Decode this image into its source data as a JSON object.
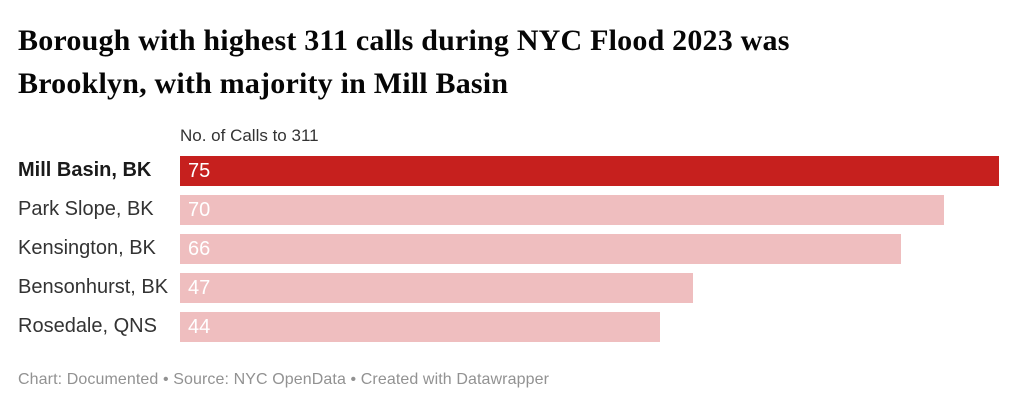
{
  "chart_data": {
    "type": "bar",
    "orientation": "horizontal",
    "title": "Borough with highest 311 calls during NYC Flood 2023 was Brooklyn, with majority in Mill Basin",
    "title_lines": [
      "Borough with highest 311 calls during NYC Flood 2023 was",
      "Brooklyn, with majority in Mill Basin"
    ],
    "value_axis_label": "No. of Calls to 311",
    "categories": [
      "Mill Basin, BK",
      "Park Slope, BK",
      "Kensington, BK",
      "Bensonhurst, BK",
      "Rosedale, QNS"
    ],
    "values": [
      75,
      70,
      66,
      47,
      44
    ],
    "xlim": [
      0,
      75
    ],
    "highlight_index": 0,
    "colors": {
      "highlight_bar": "#c6201e",
      "default_bar": "#efbebf",
      "value_label": "#ffffff"
    },
    "legend": "none",
    "grid": false,
    "footer": "Chart: Documented • Source: NYC OpenData • Created with Datawrapper"
  }
}
